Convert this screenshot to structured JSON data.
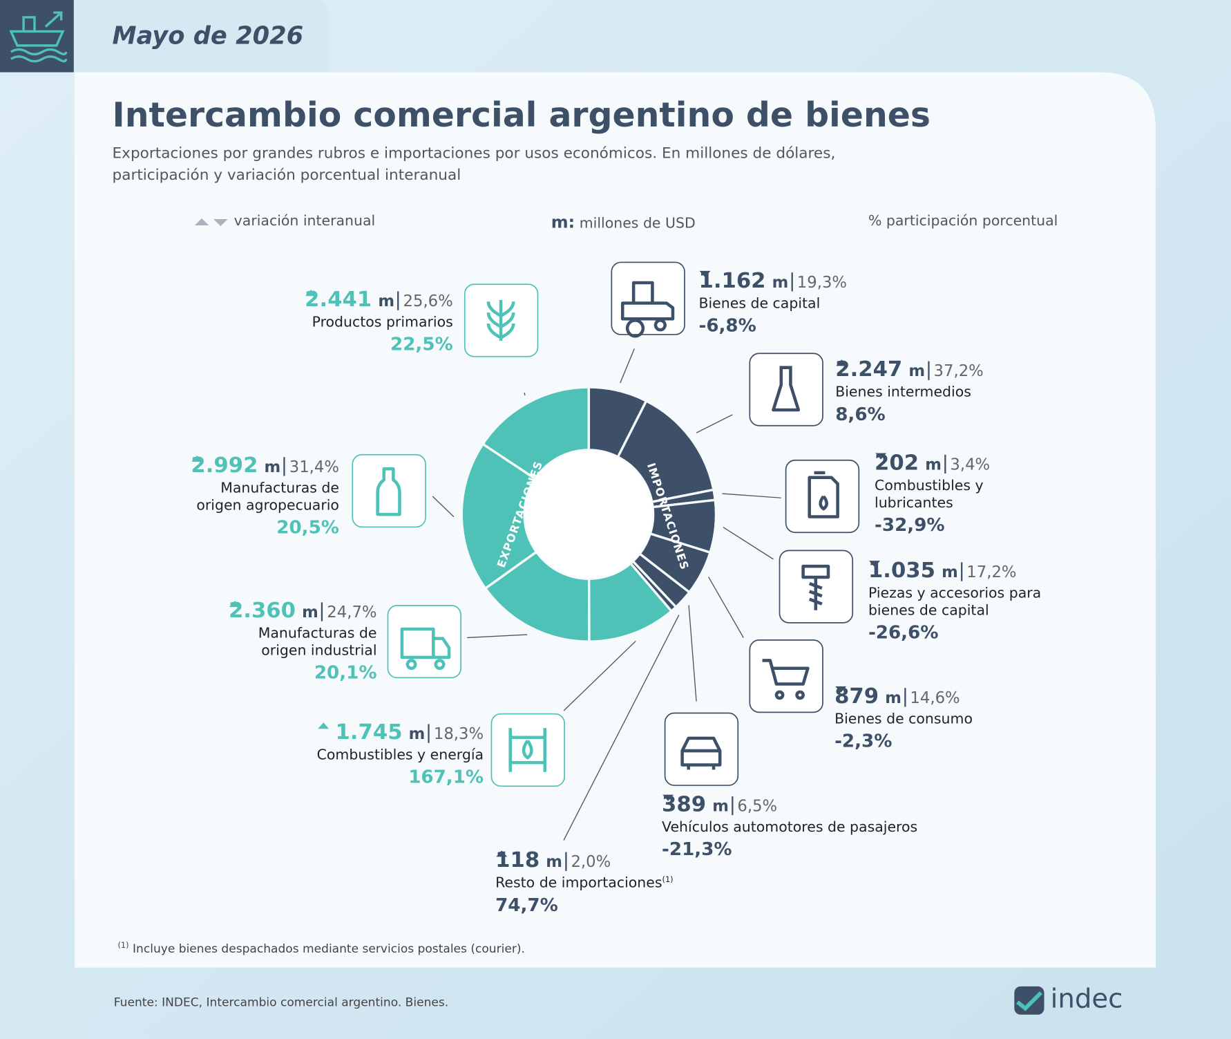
{
  "header": {
    "date": "Mayo de 2026"
  },
  "title": "Intercambio comercial argentino de bienes",
  "subtitle": "Exportaciones por grandes rubros e importaciones por usos económicos. En millones de dólares, participación y variación porcentual interanual",
  "legend": {
    "change": "variación interanual",
    "unit_symbol": "m:",
    "unit": "millones de USD",
    "share": "% participación porcentual"
  },
  "chart_data": {
    "type": "donut",
    "unit": "m",
    "series": [
      {
        "name": "EXPORTACIONES",
        "color": "#4fc2b7",
        "categories": [
          "Productos primarios",
          "Manufacturas de\norigen agropecuario",
          "Manufacturas de\norigen industrial",
          "Combustibles y energía"
        ],
        "values": [
          2441,
          2992,
          2360,
          1745
        ],
        "value_labels": [
          "2.441",
          "2.992",
          "2.360",
          "1.745"
        ],
        "shares": [
          25.6,
          31.4,
          24.7,
          18.3
        ],
        "share_labels": [
          "25,6%",
          "31,4%",
          "24,7%",
          "18,3%"
        ],
        "changes": [
          22.5,
          20.5,
          20.1,
          167.1
        ],
        "change_labels": [
          "22,5%",
          "20,5%",
          "20,1%",
          "167,1%"
        ]
      },
      {
        "name": "IMPORTACIONES",
        "color": "#3d5068",
        "categories": [
          "Bienes de capital",
          "Bienes intermedios",
          "Combustibles y\nlubricantes",
          "Piezas y accesorios para\nbienes de capital",
          "Bienes de consumo",
          "Vehículos automotores de pasajeros",
          "Resto de importaciones"
        ],
        "values": [
          1162,
          2247,
          202,
          1035,
          879,
          389,
          118
        ],
        "value_labels": [
          "1.162",
          "2.247",
          "202",
          "1.035",
          "879",
          "389",
          "118"
        ],
        "shares": [
          19.3,
          37.2,
          3.4,
          17.2,
          14.6,
          6.5,
          2.0
        ],
        "share_labels": [
          "19,3%",
          "37,2%",
          "3,4%",
          "17,2%",
          "14,6%",
          "6,5%",
          "2,0%"
        ],
        "changes": [
          -6.8,
          8.6,
          -32.9,
          -26.6,
          -2.3,
          -21.3,
          74.7
        ],
        "change_labels": [
          "-6,8%",
          "8,6%",
          "-32,9%",
          "-26,6%",
          "-2,3%",
          "-21,3%",
          "74,7%"
        ]
      }
    ]
  },
  "footnote": {
    "marker": "(1)",
    "text": "Incluye bienes despachados mediante servicios postales (courier)."
  },
  "source": "Fuente: INDEC, Intercambio comercial argentino. Bienes.",
  "logo": "indec"
}
